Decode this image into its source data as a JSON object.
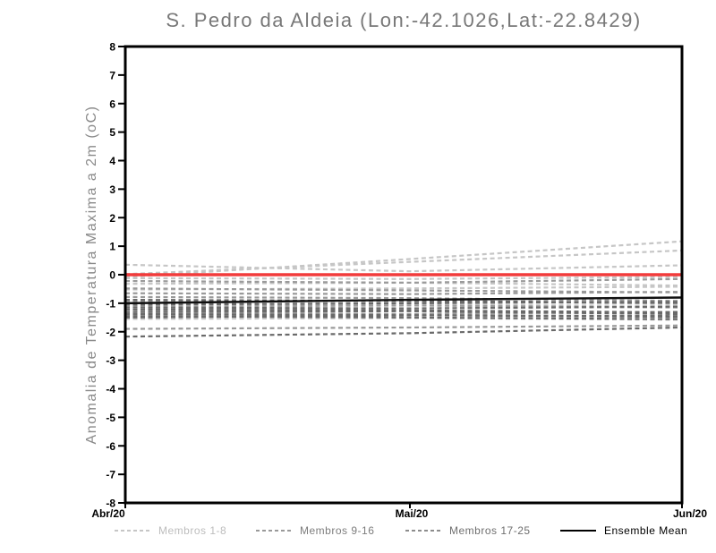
{
  "title": "S. Pedro da Aldeia (Lon:-42.1026,Lat:-22.8429)",
  "y_axis_label": "Anomalia de Temperatura Maxima a 2m (oC)",
  "colors": {
    "title": "#787878",
    "axis_label": "#8a8a8a",
    "frame": "#000000",
    "tick_label": "#000000",
    "members_1_8": "#c6c6c6",
    "members_9_16": "#9a9a9a",
    "members_17_25": "#6a6a6a",
    "ensemble_mean": "#101010",
    "zero_line": "#f23b3b"
  },
  "legend": [
    {
      "label": "Membros 1-8",
      "style": "dashed",
      "color": "#c6c6c6",
      "text_color": "#bdbdbd"
    },
    {
      "label": "Membros 9-16",
      "style": "dashed",
      "color": "#9a9a9a",
      "text_color": "#7d7d7d"
    },
    {
      "label": "Membros 17-25",
      "style": "dashed",
      "color": "#8d8d8d",
      "text_color": "#6f6f6f"
    },
    {
      "label": "Ensemble Mean",
      "style": "solid",
      "color": "#000000",
      "text_color": "#000000"
    }
  ],
  "chart_data": {
    "type": "line",
    "title": "S. Pedro da Aldeia (Lon:-42.1026,Lat:-22.8429)",
    "xlabel": "",
    "ylabel": "Anomalia de Temperatura Maxima a 2m (oC)",
    "x": [
      "Abr/20",
      "Mai/20",
      "Jun/20"
    ],
    "ylim": [
      -8,
      8
    ],
    "yticks": [
      8,
      7,
      6,
      5,
      4,
      3,
      2,
      1,
      0,
      -1,
      -2,
      -3,
      -4,
      -5,
      -6,
      -7,
      -8
    ],
    "grid": false,
    "legend_position": "bottom",
    "reference_line": {
      "name": "Zero",
      "value": 0,
      "color": "#f23b3b",
      "width": 3.5
    },
    "series": [
      {
        "name": "Membro 1",
        "group": "members_1_8",
        "style": "dashed",
        "values": [
          0.35,
          0.12,
          0.33
        ]
      },
      {
        "name": "Membro 2",
        "group": "members_1_8",
        "style": "dashed",
        "values": [
          0.02,
          0.45,
          0.85
        ]
      },
      {
        "name": "Membro 3",
        "group": "members_1_8",
        "style": "dashed",
        "values": [
          -0.08,
          0.55,
          1.17
        ]
      },
      {
        "name": "Membro 4",
        "group": "members_1_8",
        "style": "dashed",
        "values": [
          -0.12,
          -0.15,
          -0.08
        ]
      },
      {
        "name": "Membro 5",
        "group": "members_1_8",
        "style": "dashed",
        "values": [
          -0.32,
          -0.28,
          -0.38
        ]
      },
      {
        "name": "Membro 6",
        "group": "members_1_8",
        "style": "dashed",
        "values": [
          -0.52,
          -0.48,
          -0.42
        ]
      },
      {
        "name": "Membro 7",
        "group": "members_1_8",
        "style": "dashed",
        "values": [
          -1.02,
          -1.05,
          -1.1
        ]
      },
      {
        "name": "Membro 8",
        "group": "members_1_8",
        "style": "dashed",
        "values": [
          -1.55,
          -1.52,
          -1.58
        ]
      },
      {
        "name": "Membro 9",
        "group": "members_9_16",
        "style": "dashed",
        "values": [
          -0.22,
          -0.28,
          -0.15
        ]
      },
      {
        "name": "Membro 10",
        "group": "members_9_16",
        "style": "dashed",
        "values": [
          -0.48,
          -0.55,
          -0.62
        ]
      },
      {
        "name": "Membro 11",
        "group": "members_9_16",
        "style": "dashed",
        "values": [
          -0.65,
          -0.68,
          -0.6
        ]
      },
      {
        "name": "Membro 12",
        "group": "members_9_16",
        "style": "dashed",
        "values": [
          -0.78,
          -0.82,
          -0.92
        ]
      },
      {
        "name": "Membro 13",
        "group": "members_9_16",
        "style": "dashed",
        "values": [
          -0.95,
          -0.92,
          -1.02
        ]
      },
      {
        "name": "Membro 14",
        "group": "members_9_16",
        "style": "dashed",
        "values": [
          -1.12,
          -1.08,
          -1.15
        ]
      },
      {
        "name": "Membro 15",
        "group": "members_9_16",
        "style": "dashed",
        "values": [
          -1.32,
          -1.38,
          -1.3
        ]
      },
      {
        "name": "Membro 16",
        "group": "members_9_16",
        "style": "dashed",
        "values": [
          -1.9,
          -1.85,
          -1.78
        ]
      },
      {
        "name": "Membro 17",
        "group": "members_17_25",
        "style": "dashed",
        "values": [
          -0.88,
          -0.92,
          -0.98
        ]
      },
      {
        "name": "Membro 18",
        "group": "members_17_25",
        "style": "dashed",
        "values": [
          -1.05,
          -1.0,
          -0.95
        ]
      },
      {
        "name": "Membro 19",
        "group": "members_17_25",
        "style": "dashed",
        "values": [
          -1.15,
          -1.18,
          -1.12
        ]
      },
      {
        "name": "Membro 20",
        "group": "members_17_25",
        "style": "dashed",
        "values": [
          -1.22,
          -1.25,
          -1.32
        ]
      },
      {
        "name": "Membro 21",
        "group": "members_17_25",
        "style": "dashed",
        "values": [
          -1.3,
          -1.28,
          -1.38
        ]
      },
      {
        "name": "Membro 22",
        "group": "members_17_25",
        "style": "dashed",
        "values": [
          -1.38,
          -1.42,
          -1.48
        ]
      },
      {
        "name": "Membro 23",
        "group": "members_17_25",
        "style": "dashed",
        "values": [
          -1.45,
          -1.5,
          -1.56
        ]
      },
      {
        "name": "Membro 24",
        "group": "members_17_25",
        "style": "dashed",
        "values": [
          -1.5,
          -1.42,
          -1.45
        ]
      },
      {
        "name": "Membro 25",
        "group": "members_17_25",
        "style": "dashed",
        "values": [
          -2.17,
          -2.05,
          -1.85
        ]
      },
      {
        "name": "Ensemble Mean",
        "group": "ensemble_mean",
        "style": "solid",
        "width": 2.4,
        "values": [
          -1.0,
          -0.88,
          -0.8
        ]
      }
    ]
  }
}
